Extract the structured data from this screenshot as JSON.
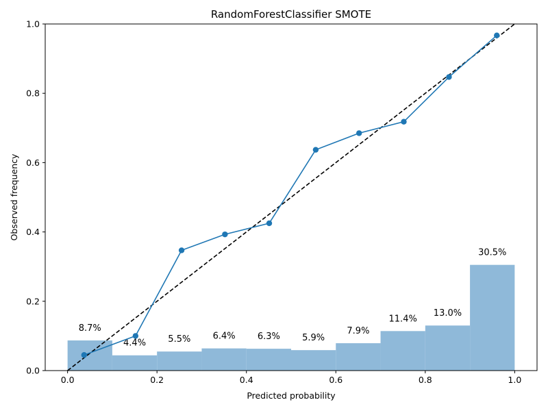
{
  "chart_data": {
    "type": "line",
    "title": "RandomForestClassifier SMOTE",
    "xlabel": "Predicted probability",
    "ylabel": "Observed frequency",
    "xlim": [
      -0.05,
      1.05
    ],
    "ylim": [
      0.0,
      1.0
    ],
    "x_ticks": [
      "0.0",
      "0.2",
      "0.4",
      "0.6",
      "0.8",
      "1.0"
    ],
    "y_ticks": [
      "0.0",
      "0.2",
      "0.4",
      "0.6",
      "0.8",
      "1.0"
    ],
    "grid": false,
    "colors": {
      "calibration_line": "#1f77b4",
      "bars": "#8fb9d9",
      "reference_line": "#000000"
    },
    "calibration_curve": {
      "x": [
        0.037,
        0.152,
        0.255,
        0.352,
        0.451,
        0.555,
        0.652,
        0.752,
        0.853,
        0.96
      ],
      "y": [
        0.045,
        0.1,
        0.347,
        0.393,
        0.425,
        0.637,
        0.685,
        0.718,
        0.847,
        0.967
      ]
    },
    "reference_line": {
      "x": [
        0.0,
        1.0
      ],
      "y": [
        0.0,
        1.0
      ],
      "style": "dashed"
    },
    "histogram": {
      "bin_edges": [
        0.0,
        0.1,
        0.2,
        0.3,
        0.4,
        0.5,
        0.6,
        0.7,
        0.8,
        0.9,
        1.0
      ],
      "values": [
        0.087,
        0.044,
        0.055,
        0.064,
        0.063,
        0.059,
        0.079,
        0.114,
        0.13,
        0.305
      ],
      "labels": [
        "8.7%",
        "4.4%",
        "5.5%",
        "6.4%",
        "6.3%",
        "5.9%",
        "7.9%",
        "11.4%",
        "13.0%",
        "30.5%"
      ]
    }
  }
}
